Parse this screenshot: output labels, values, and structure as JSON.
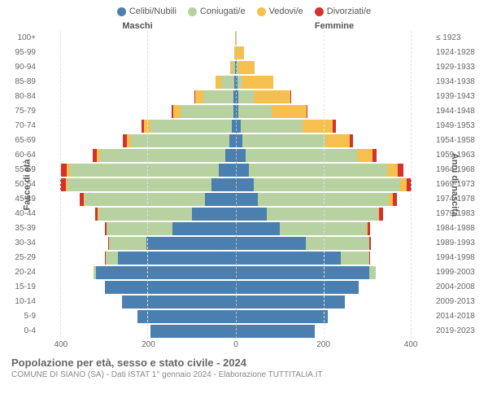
{
  "chart": {
    "type": "population-pyramid",
    "legend": [
      {
        "label": "Celibi/Nubili",
        "color": "#4a7fb0"
      },
      {
        "label": "Coniugati/e",
        "color": "#b7d2a0"
      },
      {
        "label": "Vedovi/e",
        "color": "#f5c04e"
      },
      {
        "label": "Divorziati/e",
        "color": "#d4322a"
      }
    ],
    "left_header": "Maschi",
    "right_header": "Femmine",
    "left_axis_title": "Fasce di età",
    "right_axis_title": "Anni di nascita",
    "x_axis_max": 450,
    "x_ticks": [
      0,
      200,
      400
    ],
    "background_color": "#ffffff",
    "grid_color": "#e2e2e2",
    "centerline_color": "#bbbbbb",
    "label_color": "#666666",
    "title_fontsize": 13,
    "label_fontsize": 10,
    "rows": [
      {
        "age": "100+",
        "birth": "≤ 1923",
        "m": {
          "c": 0,
          "co": 0,
          "v": 2,
          "d": 0
        },
        "f": {
          "c": 0,
          "co": 0,
          "v": 2,
          "d": 0
        }
      },
      {
        "age": "95-99",
        "birth": "1924-1928",
        "m": {
          "c": 0,
          "co": 0,
          "v": 3,
          "d": 0
        },
        "f": {
          "c": 0,
          "co": 0,
          "v": 18,
          "d": 0
        }
      },
      {
        "age": "90-94",
        "birth": "1929-1933",
        "m": {
          "c": 2,
          "co": 6,
          "v": 6,
          "d": 0
        },
        "f": {
          "c": 2,
          "co": 3,
          "v": 38,
          "d": 0
        }
      },
      {
        "age": "85-89",
        "birth": "1934-1938",
        "m": {
          "c": 3,
          "co": 30,
          "v": 14,
          "d": 0
        },
        "f": {
          "c": 3,
          "co": 12,
          "v": 70,
          "d": 0
        }
      },
      {
        "age": "80-84",
        "birth": "1939-1943",
        "m": {
          "c": 5,
          "co": 70,
          "v": 18,
          "d": 2
        },
        "f": {
          "c": 5,
          "co": 35,
          "v": 85,
          "d": 2
        }
      },
      {
        "age": "75-79",
        "birth": "1944-1948",
        "m": {
          "c": 6,
          "co": 120,
          "v": 18,
          "d": 3
        },
        "f": {
          "c": 6,
          "co": 75,
          "v": 80,
          "d": 3
        }
      },
      {
        "age": "70-74",
        "birth": "1949-1953",
        "m": {
          "c": 10,
          "co": 185,
          "v": 15,
          "d": 6
        },
        "f": {
          "c": 12,
          "co": 140,
          "v": 70,
          "d": 6
        }
      },
      {
        "age": "65-69",
        "birth": "1954-1958",
        "m": {
          "c": 15,
          "co": 225,
          "v": 10,
          "d": 8
        },
        "f": {
          "c": 15,
          "co": 190,
          "v": 55,
          "d": 8
        }
      },
      {
        "age": "60-64",
        "birth": "1959-1963",
        "m": {
          "c": 25,
          "co": 285,
          "v": 8,
          "d": 10
        },
        "f": {
          "c": 22,
          "co": 255,
          "v": 35,
          "d": 10
        }
      },
      {
        "age": "55-59",
        "birth": "1964-1968",
        "m": {
          "c": 40,
          "co": 340,
          "v": 6,
          "d": 14
        },
        "f": {
          "c": 30,
          "co": 315,
          "v": 25,
          "d": 14
        }
      },
      {
        "age": "50-54",
        "birth": "1969-1973",
        "m": {
          "c": 55,
          "co": 330,
          "v": 4,
          "d": 12
        },
        "f": {
          "c": 40,
          "co": 335,
          "v": 15,
          "d": 12
        }
      },
      {
        "age": "45-49",
        "birth": "1974-1978",
        "m": {
          "c": 70,
          "co": 275,
          "v": 2,
          "d": 10
        },
        "f": {
          "c": 50,
          "co": 300,
          "v": 8,
          "d": 10
        }
      },
      {
        "age": "40-44",
        "birth": "1979-1983",
        "m": {
          "c": 100,
          "co": 215,
          "v": 1,
          "d": 6
        },
        "f": {
          "c": 70,
          "co": 255,
          "v": 3,
          "d": 8
        }
      },
      {
        "age": "35-39",
        "birth": "1984-1988",
        "m": {
          "c": 145,
          "co": 150,
          "v": 0,
          "d": 4
        },
        "f": {
          "c": 100,
          "co": 200,
          "v": 1,
          "d": 5
        }
      },
      {
        "age": "30-34",
        "birth": "1989-1993",
        "m": {
          "c": 205,
          "co": 85,
          "v": 0,
          "d": 2
        },
        "f": {
          "c": 160,
          "co": 145,
          "v": 0,
          "d": 3
        }
      },
      {
        "age": "25-29",
        "birth": "1994-1998",
        "m": {
          "c": 270,
          "co": 28,
          "v": 0,
          "d": 1
        },
        "f": {
          "c": 240,
          "co": 65,
          "v": 0,
          "d": 2
        }
      },
      {
        "age": "20-24",
        "birth": "1999-2003",
        "m": {
          "c": 320,
          "co": 5,
          "v": 0,
          "d": 0
        },
        "f": {
          "c": 305,
          "co": 15,
          "v": 0,
          "d": 0
        }
      },
      {
        "age": "15-19",
        "birth": "2004-2008",
        "m": {
          "c": 300,
          "co": 0,
          "v": 0,
          "d": 0
        },
        "f": {
          "c": 280,
          "co": 0,
          "v": 0,
          "d": 0
        }
      },
      {
        "age": "10-14",
        "birth": "2009-2013",
        "m": {
          "c": 260,
          "co": 0,
          "v": 0,
          "d": 0
        },
        "f": {
          "c": 250,
          "co": 0,
          "v": 0,
          "d": 0
        }
      },
      {
        "age": "5-9",
        "birth": "2014-2018",
        "m": {
          "c": 225,
          "co": 0,
          "v": 0,
          "d": 0
        },
        "f": {
          "c": 210,
          "co": 0,
          "v": 0,
          "d": 0
        }
      },
      {
        "age": "0-4",
        "birth": "2019-2023",
        "m": {
          "c": 195,
          "co": 0,
          "v": 0,
          "d": 0
        },
        "f": {
          "c": 180,
          "co": 0,
          "v": 0,
          "d": 0
        }
      }
    ]
  },
  "title": {
    "main": "Popolazione per età, sesso e stato civile - 2024",
    "sub": "COMUNE DI SIANO (SA) - Dati ISTAT 1° gennaio 2024 - Elaborazione TUTTITALIA.IT"
  }
}
